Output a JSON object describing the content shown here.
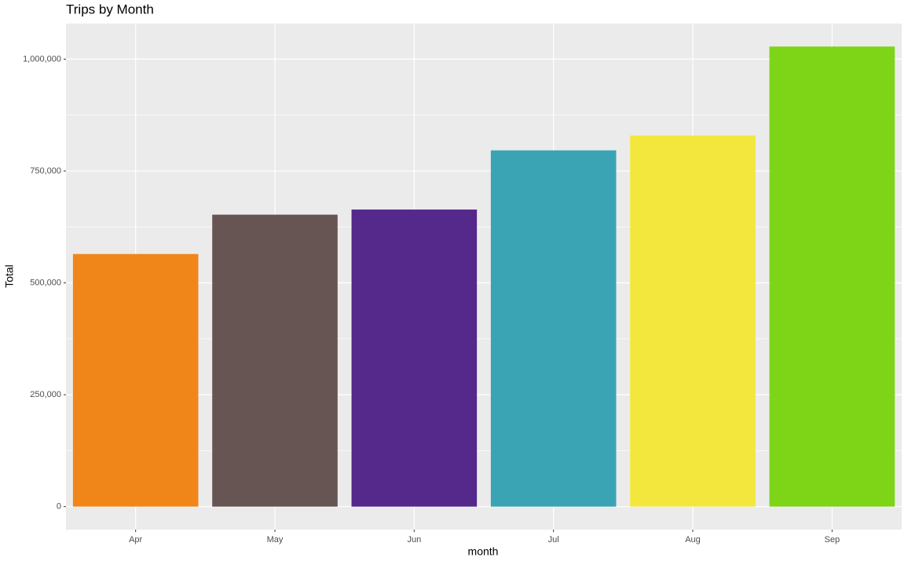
{
  "chart_data": {
    "type": "bar",
    "title": "Trips by Month",
    "x_label": "month",
    "y_label": "Total",
    "categories": [
      "Apr",
      "May",
      "Jun",
      "Jul",
      "Aug",
      "Sep"
    ],
    "values": [
      564516,
      652435,
      663844,
      796121,
      829275,
      1028136
    ],
    "colors": [
      "#F0861A",
      "#675553",
      "#55288C",
      "#3AA4B4",
      "#F3E73E",
      "#7ED417"
    ],
    "ylim": [
      -51406.8,
      1079542.8
    ],
    "yticks": [
      0,
      {
        "value": 250000,
        "label": "250,000"
      },
      {
        "value": 500000,
        "label": "500,000"
      },
      {
        "value": 750000,
        "label": "750,000"
      },
      {
        "value": 1000000,
        "label": "1,000,000"
      }
    ],
    "y_minor_grid": [
      125000,
      375000,
      625000,
      875000
    ],
    "grid": true
  }
}
